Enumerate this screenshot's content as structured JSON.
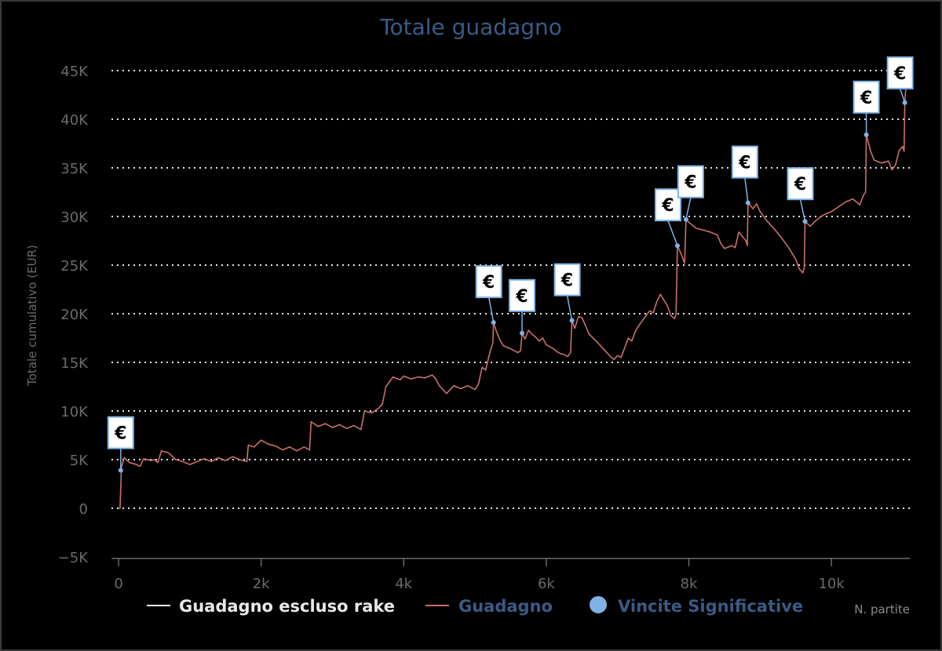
{
  "chart_data": {
    "type": "line",
    "title": "Totale guadagno",
    "xlabel": "N. partite",
    "ylabel": "Totale cumulativo (EUR)",
    "xlim": [
      -100,
      11100
    ],
    "ylim": [
      -5000,
      45000
    ],
    "y_ticks": [
      -5000,
      0,
      5000,
      10000,
      15000,
      20000,
      25000,
      30000,
      35000,
      40000,
      45000
    ],
    "y_tick_labels": [
      "−5K",
      "0",
      "5K",
      "10K",
      "15K",
      "20K",
      "25K",
      "30K",
      "35K",
      "40K",
      "45K"
    ],
    "x_ticks": [
      0,
      2000,
      4000,
      6000,
      8000,
      10000
    ],
    "x_tick_labels": [
      "0",
      "2k",
      "4k",
      "6k",
      "8k",
      "10k"
    ],
    "grid": "horizontal dotted",
    "legend_position": "bottom",
    "legend": [
      {
        "name": "Guadagno escluso rake",
        "marker": "line",
        "color": "#ffffff",
        "text_color": "#e8e8e8"
      },
      {
        "name": "Guadagno",
        "marker": "line",
        "color": "#c8706c",
        "text_color": "#3b5a86"
      },
      {
        "name": "Vincite Significative",
        "marker": "dot",
        "color": "#7fb2e5",
        "text_color": "#3b5a86"
      }
    ],
    "series": [
      {
        "name": "Guadagno",
        "color": "#c8706c",
        "points": [
          [
            0,
            0
          ],
          [
            20,
            0
          ],
          [
            40,
            4200
          ],
          [
            80,
            5200
          ],
          [
            150,
            4700
          ],
          [
            250,
            4500
          ],
          [
            300,
            4300
          ],
          [
            350,
            5100
          ],
          [
            450,
            4900
          ],
          [
            500,
            5000
          ],
          [
            550,
            4700
          ],
          [
            600,
            5900
          ],
          [
            700,
            5700
          ],
          [
            800,
            5000
          ],
          [
            900,
            4800
          ],
          [
            1000,
            4500
          ],
          [
            1100,
            4800
          ],
          [
            1200,
            5100
          ],
          [
            1300,
            4800
          ],
          [
            1400,
            5200
          ],
          [
            1500,
            4900
          ],
          [
            1600,
            5300
          ],
          [
            1700,
            5000
          ],
          [
            1800,
            4800
          ],
          [
            1820,
            6500
          ],
          [
            1900,
            6300
          ],
          [
            2000,
            7000
          ],
          [
            2100,
            6600
          ],
          [
            2200,
            6400
          ],
          [
            2300,
            6000
          ],
          [
            2400,
            6300
          ],
          [
            2500,
            5900
          ],
          [
            2600,
            6300
          ],
          [
            2680,
            6000
          ],
          [
            2700,
            8900
          ],
          [
            2800,
            8400
          ],
          [
            2900,
            8700
          ],
          [
            3000,
            8300
          ],
          [
            3100,
            8600
          ],
          [
            3200,
            8200
          ],
          [
            3300,
            8500
          ],
          [
            3400,
            8100
          ],
          [
            3450,
            10000
          ],
          [
            3550,
            9800
          ],
          [
            3650,
            10300
          ],
          [
            3700,
            10700
          ],
          [
            3750,
            12500
          ],
          [
            3850,
            13500
          ],
          [
            3950,
            13200
          ],
          [
            4000,
            13600
          ],
          [
            4100,
            13300
          ],
          [
            4200,
            13500
          ],
          [
            4300,
            13400
          ],
          [
            4400,
            13700
          ],
          [
            4450,
            13300
          ],
          [
            4500,
            12600
          ],
          [
            4550,
            12200
          ],
          [
            4600,
            11800
          ],
          [
            4700,
            12600
          ],
          [
            4800,
            12300
          ],
          [
            4900,
            12600
          ],
          [
            5000,
            12200
          ],
          [
            5050,
            12800
          ],
          [
            5100,
            14500
          ],
          [
            5150,
            14200
          ],
          [
            5200,
            15800
          ],
          [
            5250,
            17000
          ],
          [
            5260,
            19100
          ],
          [
            5300,
            18200
          ],
          [
            5350,
            17300
          ],
          [
            5400,
            16700
          ],
          [
            5500,
            16400
          ],
          [
            5600,
            16000
          ],
          [
            5640,
            16200
          ],
          [
            5660,
            18000
          ],
          [
            5700,
            17400
          ],
          [
            5750,
            18300
          ],
          [
            5800,
            17900
          ],
          [
            5850,
            17600
          ],
          [
            5900,
            17200
          ],
          [
            5950,
            17500
          ],
          [
            6000,
            16800
          ],
          [
            6100,
            16400
          ],
          [
            6150,
            16100
          ],
          [
            6200,
            15900
          ],
          [
            6250,
            15800
          ],
          [
            6300,
            15600
          ],
          [
            6340,
            16000
          ],
          [
            6360,
            19300
          ],
          [
            6400,
            18500
          ],
          [
            6450,
            19700
          ],
          [
            6500,
            19600
          ],
          [
            6550,
            18800
          ],
          [
            6600,
            17900
          ],
          [
            6700,
            17200
          ],
          [
            6750,
            16800
          ],
          [
            6800,
            16400
          ],
          [
            6850,
            16000
          ],
          [
            6900,
            15600
          ],
          [
            6950,
            15300
          ],
          [
            7000,
            15700
          ],
          [
            7050,
            15500
          ],
          [
            7100,
            16500
          ],
          [
            7150,
            17500
          ],
          [
            7200,
            17200
          ],
          [
            7250,
            18200
          ],
          [
            7300,
            18800
          ],
          [
            7350,
            19300
          ],
          [
            7400,
            19800
          ],
          [
            7450,
            20300
          ],
          [
            7500,
            20100
          ],
          [
            7550,
            21200
          ],
          [
            7600,
            22000
          ],
          [
            7650,
            21400
          ],
          [
            7700,
            20800
          ],
          [
            7750,
            19800
          ],
          [
            7800,
            19500
          ],
          [
            7820,
            20000
          ],
          [
            7840,
            27000
          ],
          [
            7900,
            26000
          ],
          [
            7940,
            25200
          ],
          [
            7960,
            29700
          ],
          [
            8000,
            29400
          ],
          [
            8100,
            28800
          ],
          [
            8200,
            28600
          ],
          [
            8300,
            28400
          ],
          [
            8400,
            28100
          ],
          [
            8450,
            27200
          ],
          [
            8500,
            26700
          ],
          [
            8600,
            27000
          ],
          [
            8650,
            26800
          ],
          [
            8700,
            28400
          ],
          [
            8800,
            27500
          ],
          [
            8820,
            27000
          ],
          [
            8830,
            31400
          ],
          [
            8900,
            30800
          ],
          [
            8950,
            31300
          ],
          [
            9000,
            30500
          ],
          [
            9100,
            29500
          ],
          [
            9200,
            28700
          ],
          [
            9300,
            27800
          ],
          [
            9400,
            26800
          ],
          [
            9500,
            25600
          ],
          [
            9550,
            24600
          ],
          [
            9600,
            24200
          ],
          [
            9620,
            24800
          ],
          [
            9630,
            29500
          ],
          [
            9700,
            29000
          ],
          [
            9800,
            29700
          ],
          [
            9900,
            30200
          ],
          [
            10000,
            30500
          ],
          [
            10100,
            31000
          ],
          [
            10200,
            31500
          ],
          [
            10300,
            31800
          ],
          [
            10400,
            31200
          ],
          [
            10450,
            32200
          ],
          [
            10480,
            32500
          ],
          [
            10490,
            38400
          ],
          [
            10550,
            36700
          ],
          [
            10600,
            35800
          ],
          [
            10700,
            35500
          ],
          [
            10800,
            35700
          ],
          [
            10850,
            34800
          ],
          [
            10900,
            35300
          ],
          [
            10950,
            36800
          ],
          [
            11000,
            37200
          ],
          [
            11020,
            36700
          ],
          [
            11030,
            41700
          ],
          [
            11060,
            45000
          ],
          [
            11100,
            45000
          ]
        ]
      },
      {
        "name": "Vincite Significative",
        "color": "#7fb2e5",
        "flag_label": "€",
        "points": [
          [
            30,
            3900
          ],
          [
            5260,
            19100
          ],
          [
            5660,
            18000
          ],
          [
            6360,
            19300
          ],
          [
            7840,
            27000
          ],
          [
            7960,
            29700
          ],
          [
            8830,
            31400
          ],
          [
            9630,
            29500
          ],
          [
            10490,
            38400
          ],
          [
            11030,
            41700
          ]
        ],
        "flag_offsets": [
          [
            0,
            -48
          ],
          [
            -6,
            -52
          ],
          [
            0,
            -48
          ],
          [
            -6,
            -52
          ],
          [
            -12,
            -52
          ],
          [
            6,
            -48
          ],
          [
            -4,
            -52
          ],
          [
            -6,
            -48
          ],
          [
            0,
            -48
          ],
          [
            -6,
            -38
          ]
        ]
      }
    ]
  }
}
